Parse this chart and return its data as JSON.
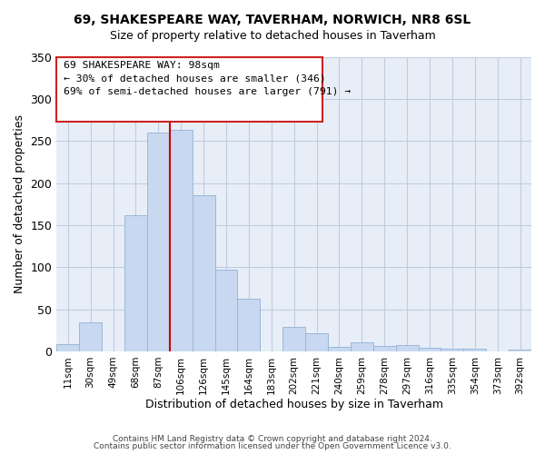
{
  "title_line1": "69, SHAKESPEARE WAY, TAVERHAM, NORWICH, NR8 6SL",
  "title_line2": "Size of property relative to detached houses in Taverham",
  "xlabel": "Distribution of detached houses by size in Taverham",
  "ylabel": "Number of detached properties",
  "bar_labels": [
    "11sqm",
    "30sqm",
    "49sqm",
    "68sqm",
    "87sqm",
    "106sqm",
    "126sqm",
    "145sqm",
    "164sqm",
    "183sqm",
    "202sqm",
    "221sqm",
    "240sqm",
    "259sqm",
    "278sqm",
    "297sqm",
    "316sqm",
    "335sqm",
    "354sqm",
    "373sqm",
    "392sqm"
  ],
  "bar_values": [
    9,
    35,
    0,
    162,
    260,
    263,
    185,
    97,
    63,
    0,
    29,
    21,
    5,
    11,
    6,
    8,
    4,
    3,
    3,
    0,
    2
  ],
  "bar_color": "#c8d8f0",
  "bar_edge_color": "#9ab8d8",
  "vline_x": 4.5,
  "vline_color": "#cc0000",
  "annotation_text_line1": "69 SHAKESPEARE WAY: 98sqm",
  "annotation_text_line2": "← 30% of detached houses are smaller (346)",
  "annotation_text_line3": "69% of semi-detached houses are larger (791) →",
  "ylim": [
    0,
    350
  ],
  "yticks": [
    0,
    50,
    100,
    150,
    200,
    250,
    300,
    350
  ],
  "footer_line1": "Contains HM Land Registry data © Crown copyright and database right 2024.",
  "footer_line2": "Contains public sector information licensed under the Open Government Licence v3.0.",
  "plot_bg_color": "#e8eef8",
  "fig_bg_color": "#ffffff",
  "grid_color": "#c0cce0",
  "ann_box_edge_color": "#cc2222",
  "ann_box_face_color": "#ffffff"
}
